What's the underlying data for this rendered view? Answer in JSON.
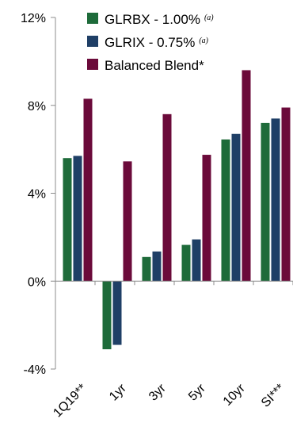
{
  "chart_data": {
    "type": "bar",
    "categories": [
      "1Q19**",
      "1yr",
      "3yr",
      "5yr",
      "10yr",
      "SI***"
    ],
    "series": [
      {
        "name": "GLRBX - 1.00%",
        "note": "(a)",
        "color": "#1e6b3a",
        "values": [
          5.6,
          -3.1,
          1.1,
          1.65,
          6.45,
          7.2
        ]
      },
      {
        "name": "GLRIX - 0.75%",
        "note": "(a)",
        "color": "#1f3f66",
        "values": [
          5.7,
          -2.9,
          1.35,
          1.9,
          6.7,
          7.4
        ]
      },
      {
        "name": "Balanced Blend*",
        "note": "",
        "color": "#6b0a3a",
        "values": [
          8.3,
          5.45,
          7.6,
          5.75,
          9.6,
          7.9
        ]
      }
    ],
    "y_ticks": [
      "12%",
      "8%",
      "4%",
      "0%",
      "-4%"
    ],
    "y_tick_values": [
      12,
      8,
      4,
      0,
      -4
    ],
    "ylim": [
      -4,
      12
    ],
    "legend_position": "top-center"
  }
}
